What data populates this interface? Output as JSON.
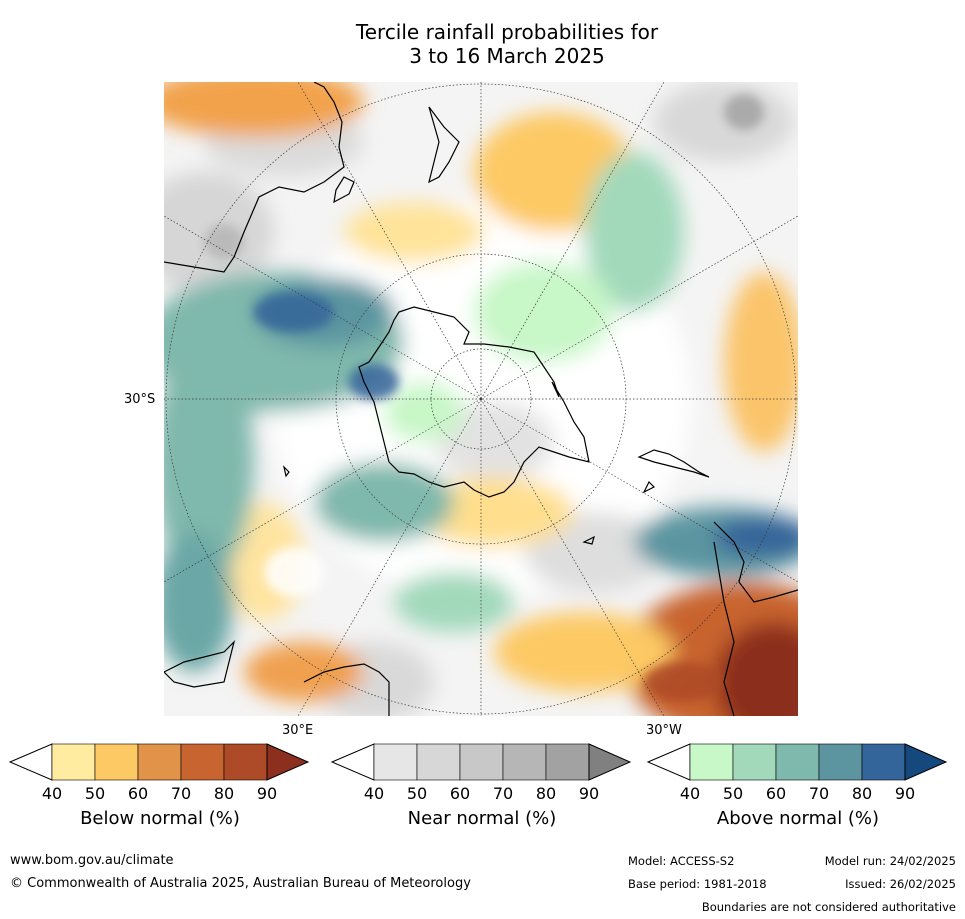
{
  "title_line1": "Tercile rainfall probabilities for",
  "title_line2": "3 to 16 March 2025",
  "map": {
    "lat_label": "30°S",
    "lon_label_left": "30°E",
    "lon_label_right": "30°W"
  },
  "colorbars": [
    {
      "label": "Below normal (%)",
      "ticks": [
        "40",
        "50",
        "60",
        "70",
        "80",
        "90"
      ],
      "colors": [
        "#ffeca0",
        "#fdc965",
        "#e1934a",
        "#c8642f",
        "#ad4a28",
        "#8c2f1e"
      ]
    },
    {
      "label": "Near normal (%)",
      "ticks": [
        "40",
        "50",
        "60",
        "70",
        "80",
        "90"
      ],
      "colors": [
        "#e6e6e6",
        "#d7d7d7",
        "#c8c8c8",
        "#b6b6b6",
        "#a2a2a2",
        "#808080"
      ]
    },
    {
      "label": "Above normal (%)",
      "ticks": [
        "40",
        "50",
        "60",
        "70",
        "80",
        "90"
      ],
      "colors": [
        "#c8f7c8",
        "#a2d9bb",
        "#7fb8ac",
        "#5c95a0",
        "#34659a",
        "#15487d"
      ]
    }
  ],
  "footer": {
    "website": "www.bom.gov.au/climate",
    "copyright": "© Commonwealth of Australia 2025, Australian Bureau of Meteorology",
    "model": "Model: ACCESS-S2",
    "model_run": "Model run: 24/02/2025",
    "base_period": "Base period: 1981-2018",
    "issued": "Issued: 26/02/2025",
    "disclaimer": "Boundaries are not considered authoritative"
  }
}
